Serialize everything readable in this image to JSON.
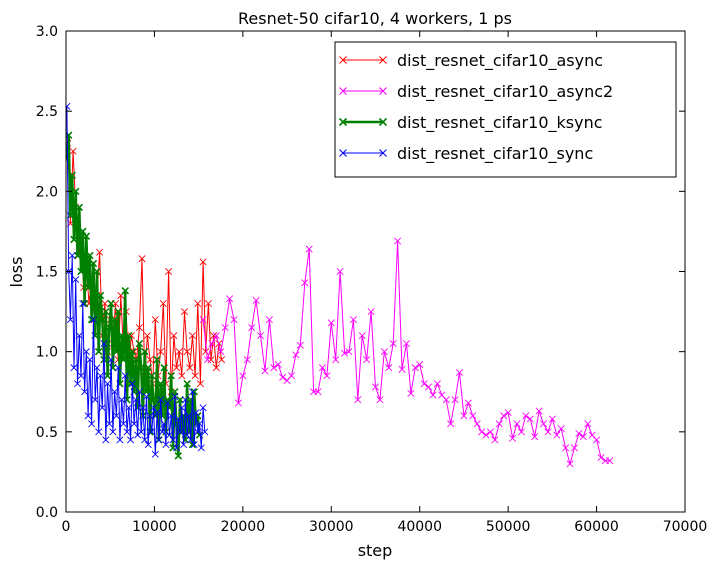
{
  "chart_data": {
    "type": "line",
    "title": "Resnet-50 cifar10, 4 workers, 1 ps",
    "xlabel": "step",
    "ylabel": "loss",
    "xlim": [
      0,
      70000
    ],
    "ylim": [
      0.0,
      3.0
    ],
    "xticks": [
      0,
      10000,
      20000,
      30000,
      40000,
      50000,
      60000,
      70000
    ],
    "xtick_labels": [
      "0",
      "10000",
      "20000",
      "30000",
      "40000",
      "50000",
      "60000",
      "70000"
    ],
    "yticks": [
      0.0,
      0.5,
      1.0,
      1.5,
      2.0,
      2.5,
      3.0
    ],
    "ytick_labels": [
      "0.0",
      "0.5",
      "1.0",
      "1.5",
      "2.0",
      "2.5",
      "3.0"
    ],
    "grid": false,
    "legend_position": "top-right",
    "marker": "x",
    "series": [
      {
        "name": "dist_resnet_cifar10_async",
        "color": "#ff0000",
        "line_width": 1,
        "x": [
          200,
          500,
          800,
          1100,
          1400,
          1700,
          2000,
          2300,
          2600,
          2900,
          3200,
          3500,
          3800,
          4100,
          4400,
          4700,
          5000,
          5300,
          5600,
          5900,
          6200,
          6500,
          6800,
          7100,
          7400,
          7700,
          8000,
          8300,
          8600,
          8900,
          9200,
          9500,
          9800,
          10100,
          10400,
          10700,
          11000,
          11300,
          11600,
          11900,
          12200,
          12500,
          12800,
          13100,
          13400,
          13700,
          14000,
          14300,
          14600,
          14900,
          15200,
          15500,
          15800,
          16100,
          16400,
          16700,
          17000,
          17300,
          17600
        ],
        "y": [
          2.3,
          1.8,
          2.25,
          1.9,
          1.6,
          1.7,
          1.4,
          1.55,
          1.3,
          1.45,
          1.2,
          1.35,
          1.62,
          1.1,
          1.3,
          1.0,
          1.2,
          1.05,
          1.3,
          0.95,
          1.35,
          1.0,
          1.25,
          0.9,
          1.1,
          1.0,
          0.95,
          1.15,
          1.58,
          0.85,
          1.1,
          0.95,
          0.8,
          1.2,
          0.85,
          1.0,
          1.3,
          0.8,
          1.5,
          0.75,
          1.1,
          0.9,
          1.0,
          0.85,
          1.25,
          1.0,
          0.9,
          1.1,
          0.85,
          1.3,
          0.8,
          1.56,
          1.0,
          1.3,
          0.95,
          1.1,
          0.9,
          1.05,
          0.95
        ]
      },
      {
        "name": "dist_resnet_cifar10_async2",
        "color": "#ff00ff",
        "line_width": 1,
        "x": [
          15500,
          16000,
          16500,
          17000,
          17500,
          18000,
          18500,
          19000,
          19500,
          20000,
          20500,
          21000,
          21500,
          22000,
          22500,
          23000,
          23500,
          24000,
          24500,
          25000,
          25500,
          26000,
          26500,
          27000,
          27500,
          28000,
          28500,
          29000,
          29500,
          30000,
          30500,
          31000,
          31500,
          32000,
          32500,
          33000,
          33500,
          34000,
          34500,
          35000,
          35500,
          36000,
          36500,
          37000,
          37500,
          38000,
          38500,
          39000,
          39500,
          40000,
          40500,
          41000,
          41500,
          42000,
          42500,
          43000,
          43500,
          44000,
          44500,
          45000,
          45500,
          46000,
          46500,
          47000,
          47500,
          48000,
          48500,
          49000,
          49500,
          50000,
          50500,
          51000,
          51500,
          52000,
          52500,
          53000,
          53500,
          54000,
          54500,
          55000,
          55500,
          56000,
          56500,
          57000,
          57500,
          58000,
          58500,
          59000,
          59500,
          60000,
          60500,
          61000,
          61500
        ],
        "y": [
          1.2,
          0.95,
          1.05,
          1.1,
          1.0,
          1.15,
          1.33,
          1.2,
          0.68,
          0.85,
          0.95,
          1.15,
          1.32,
          1.1,
          0.88,
          1.2,
          0.9,
          0.92,
          0.84,
          0.82,
          0.85,
          0.98,
          1.04,
          1.43,
          1.64,
          0.75,
          0.75,
          0.9,
          0.85,
          1.18,
          0.95,
          1.5,
          0.99,
          1.0,
          1.2,
          0.7,
          1.1,
          0.95,
          1.25,
          0.78,
          0.7,
          1.0,
          0.9,
          1.05,
          1.69,
          0.89,
          1.05,
          0.74,
          0.9,
          0.92,
          0.8,
          0.78,
          0.73,
          0.8,
          0.73,
          0.7,
          0.55,
          0.7,
          0.87,
          0.6,
          0.68,
          0.6,
          0.55,
          0.5,
          0.48,
          0.5,
          0.45,
          0.55,
          0.6,
          0.62,
          0.46,
          0.55,
          0.5,
          0.6,
          0.58,
          0.47,
          0.63,
          0.55,
          0.5,
          0.58,
          0.48,
          0.52,
          0.4,
          0.3,
          0.4,
          0.49,
          0.47,
          0.55,
          0.48,
          0.45,
          0.34,
          0.32,
          0.32
        ]
      },
      {
        "name": "dist_resnet_cifar10_ksync",
        "color": "#008000",
        "line_width": 2.5,
        "x": [
          100,
          300,
          500,
          700,
          900,
          1100,
          1300,
          1500,
          1700,
          1900,
          2100,
          2300,
          2500,
          2700,
          2900,
          3100,
          3300,
          3500,
          3700,
          3900,
          4100,
          4300,
          4500,
          4700,
          4900,
          5100,
          5300,
          5500,
          5700,
          5900,
          6100,
          6300,
          6500,
          6700,
          6900,
          7100,
          7300,
          7500,
          7700,
          7900,
          8100,
          8300,
          8500,
          8700,
          8900,
          9100,
          9300,
          9500,
          9700,
          9900,
          10100,
          10300,
          10500,
          10700,
          10900,
          11100,
          11300,
          11500,
          11700,
          11900,
          12100,
          12300,
          12500,
          12700,
          12900,
          13100,
          13300,
          13500,
          13700,
          13900,
          14100,
          14300,
          14500,
          14700,
          14900,
          15100
        ],
        "y": [
          2.2,
          2.35,
          1.85,
          2.1,
          1.7,
          2.0,
          1.6,
          1.9,
          1.5,
          1.75,
          1.3,
          1.72,
          1.4,
          1.6,
          1.2,
          1.55,
          1.1,
          1.5,
          1.0,
          1.35,
          1.2,
          0.95,
          1.25,
          0.85,
          1.15,
          1.3,
          0.9,
          1.2,
          1.0,
          1.25,
          0.8,
          1.1,
          0.95,
          1.38,
          0.7,
          1.1,
          0.8,
          1.0,
          0.75,
          0.95,
          0.65,
          1.05,
          0.9,
          0.6,
          1.0,
          0.75,
          0.9,
          0.5,
          0.85,
          0.7,
          0.6,
          0.95,
          0.45,
          0.8,
          0.6,
          0.9,
          0.5,
          0.7,
          0.65,
          0.85,
          0.4,
          0.75,
          0.55,
          0.35,
          0.7,
          0.5,
          0.6,
          0.45,
          0.8,
          0.5,
          0.7,
          0.42,
          0.75,
          0.55,
          0.6,
          0.48
        ]
      },
      {
        "name": "dist_resnet_cifar10_sync",
        "color": "#0000ff",
        "line_width": 1,
        "x": [
          100,
          300,
          500,
          700,
          900,
          1100,
          1300,
          1500,
          1700,
          1900,
          2100,
          2300,
          2500,
          2700,
          2900,
          3100,
          3300,
          3500,
          3700,
          3900,
          4100,
          4300,
          4500,
          4700,
          4900,
          5100,
          5300,
          5500,
          5700,
          5900,
          6100,
          6300,
          6500,
          6700,
          6900,
          7100,
          7300,
          7500,
          7700,
          7900,
          8100,
          8300,
          8500,
          8700,
          8900,
          9100,
          9300,
          9500,
          9700,
          9900,
          10100,
          10300,
          10500,
          10700,
          10900,
          11100,
          11300,
          11500,
          11700,
          11900,
          12100,
          12300,
          12500,
          12700,
          12900,
          13100,
          13300,
          13500,
          13700,
          13900,
          14100,
          14300,
          14500,
          14700,
          14900,
          15100,
          15300,
          15500,
          15700
        ],
        "y": [
          2.53,
          1.5,
          1.2,
          1.6,
          0.9,
          1.45,
          0.8,
          1.1,
          0.85,
          1.3,
          0.75,
          1.0,
          0.6,
          0.95,
          0.55,
          1.2,
          0.7,
          0.9,
          0.5,
          0.85,
          0.65,
          1.05,
          0.45,
          0.8,
          0.55,
          0.95,
          0.5,
          0.75,
          0.6,
          0.9,
          0.45,
          0.7,
          0.55,
          0.85,
          0.5,
          0.65,
          0.45,
          0.8,
          0.55,
          0.7,
          0.48,
          0.75,
          0.5,
          0.65,
          0.45,
          0.72,
          0.42,
          0.6,
          0.5,
          0.65,
          0.36,
          0.62,
          0.45,
          0.7,
          0.5,
          0.55,
          0.42,
          0.68,
          0.48,
          0.6,
          0.45,
          0.72,
          0.4,
          0.58,
          0.5,
          0.65,
          0.42,
          0.7,
          0.48,
          0.6,
          0.45,
          0.75,
          0.42,
          0.62,
          0.5,
          0.55,
          0.4,
          0.65,
          0.5
        ]
      }
    ]
  }
}
